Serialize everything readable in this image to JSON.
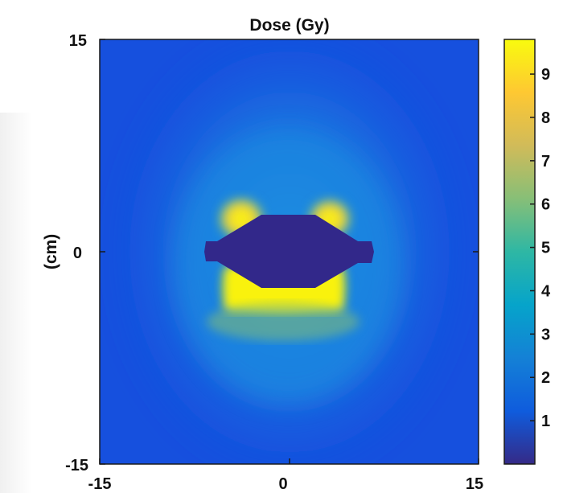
{
  "chart_data": {
    "type": "heatmap",
    "title": "Dose (Gy)",
    "xlabel": "",
    "ylabel": "(cm)",
    "xlim": [
      -15,
      15
    ],
    "ylim": [
      -15,
      15
    ],
    "x_ticks": [
      "-15",
      "0",
      "15"
    ],
    "y_ticks": [
      "15",
      "0",
      "-15"
    ],
    "colorbar": {
      "ticks": [
        "1",
        "2",
        "3",
        "4",
        "5",
        "6",
        "7",
        "8",
        "9"
      ],
      "range": [
        0,
        9.8
      ],
      "colormap": "parula",
      "stops": [
        "#352a87",
        "#0f5cdd",
        "#1481d6",
        "#06a4ca",
        "#2eb7a4",
        "#87bf77",
        "#d1bb59",
        "#fec832",
        "#f9fb0e"
      ]
    },
    "dose_regions": [
      {
        "region": "background (far field)",
        "dose_gy": 1.4
      },
      {
        "region": "central field",
        "dose_gy": 2.2
      },
      {
        "region": "upper lateral hot spots (x≈-4, x≈3, y≈2.5)",
        "dose_gy": 9.0
      },
      {
        "region": "lower band below shield (y≈-3)",
        "dose_gy": 9.5
      },
      {
        "region": "central shielded object (x≈-6.5..7, y≈-2.8..2.8)",
        "dose_gy": 0.2
      }
    ]
  }
}
